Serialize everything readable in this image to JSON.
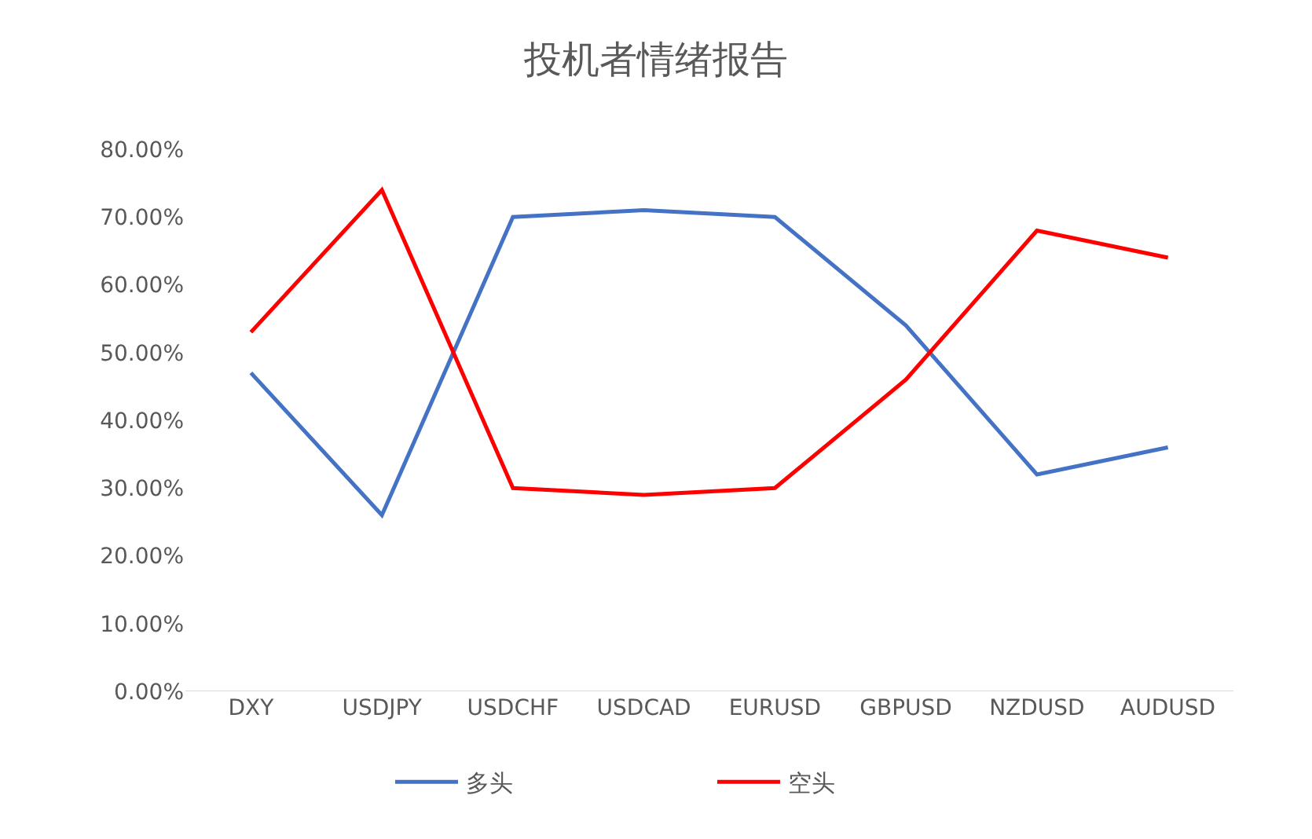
{
  "chart_data": {
    "type": "line",
    "title": "投机者情绪报告",
    "categories": [
      "DXY",
      "USDJPY",
      "USDCHF",
      "USDCAD",
      "EURUSD",
      "GBPUSD",
      "NZDUSD",
      "AUDUSD"
    ],
    "series": [
      {
        "name": "多头",
        "color": "#4472c4",
        "values": [
          47,
          26,
          70,
          71,
          70,
          54,
          32,
          36
        ]
      },
      {
        "name": "空头",
        "color": "#ff0000",
        "values": [
          53,
          74,
          30,
          29,
          30,
          46,
          68,
          64
        ]
      }
    ],
    "ylim": [
      0,
      80
    ],
    "yticks": [
      {
        "value": 0,
        "label": "0.00%"
      },
      {
        "value": 10,
        "label": "10.00%"
      },
      {
        "value": 20,
        "label": "20.00%"
      },
      {
        "value": 30,
        "label": "30.00%"
      },
      {
        "value": 40,
        "label": "40.00%"
      },
      {
        "value": 50,
        "label": "50.00%"
      },
      {
        "value": 60,
        "label": "60.00%"
      },
      {
        "value": 70,
        "label": "70.00%"
      },
      {
        "value": 80,
        "label": "80.00%"
      }
    ],
    "grid": false,
    "legend": "bottom",
    "marker": "none",
    "line_style": "solid"
  }
}
